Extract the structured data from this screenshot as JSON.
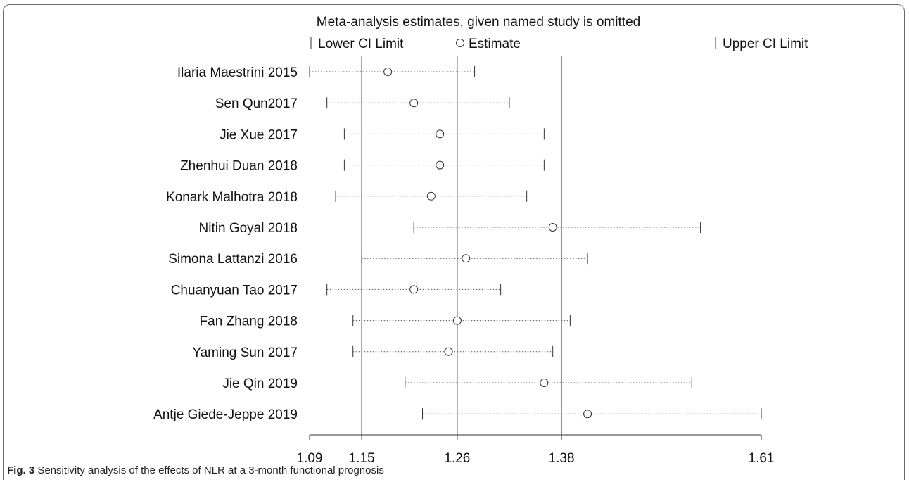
{
  "chart_data": {
    "type": "forest-plot",
    "title": "Meta-analysis estimates, given named study is omitted",
    "legend": {
      "lower": "Lower CI Limit",
      "estimate": "Estimate",
      "upper": "Upper CI Limit",
      "placement": "top"
    },
    "xlim": [
      1.09,
      1.61
    ],
    "ticks": [
      {
        "value": 1.09,
        "label": "1.09"
      },
      {
        "value": 1.15,
        "label": "1.15"
      },
      {
        "value": 1.26,
        "label": "1.26"
      },
      {
        "value": 1.38,
        "label": "1.38"
      },
      {
        "value": 1.61,
        "label": "1.61"
      }
    ],
    "reference_lines": [
      1.15,
      1.26,
      1.38
    ],
    "studies": [
      {
        "name": "Ilaria Maestrini 2015",
        "lower": 1.09,
        "estimate": 1.18,
        "upper": 1.28
      },
      {
        "name": "Sen Qun2017",
        "lower": 1.11,
        "estimate": 1.21,
        "upper": 1.32
      },
      {
        "name": "Jie Xue 2017",
        "lower": 1.13,
        "estimate": 1.24,
        "upper": 1.36
      },
      {
        "name": "Zhenhui Duan 2018",
        "lower": 1.13,
        "estimate": 1.24,
        "upper": 1.36
      },
      {
        "name": "Konark Malhotra 2018",
        "lower": 1.12,
        "estimate": 1.23,
        "upper": 1.34
      },
      {
        "name": "Nitin Goyal 2018",
        "lower": 1.21,
        "estimate": 1.37,
        "upper": 1.54
      },
      {
        "name": "Simona Lattanzi 2016",
        "lower": 1.15,
        "estimate": 1.27,
        "upper": 1.41
      },
      {
        "name": "Chuanyuan Tao 2017",
        "lower": 1.11,
        "estimate": 1.21,
        "upper": 1.31
      },
      {
        "name": "Fan Zhang 2018",
        "lower": 1.14,
        "estimate": 1.26,
        "upper": 1.39
      },
      {
        "name": "Yaming Sun 2017",
        "lower": 1.14,
        "estimate": 1.25,
        "upper": 1.37
      },
      {
        "name": "Jie Qin 2019",
        "lower": 1.2,
        "estimate": 1.36,
        "upper": 1.53
      },
      {
        "name": "Antje Giede-Jeppe 2019",
        "lower": 1.22,
        "estimate": 1.41,
        "upper": 1.61
      }
    ]
  },
  "caption": {
    "label": "Fig. 3",
    "text": " Sensitivity analysis of the effects of NLR at a 3-month functional prognosis"
  }
}
